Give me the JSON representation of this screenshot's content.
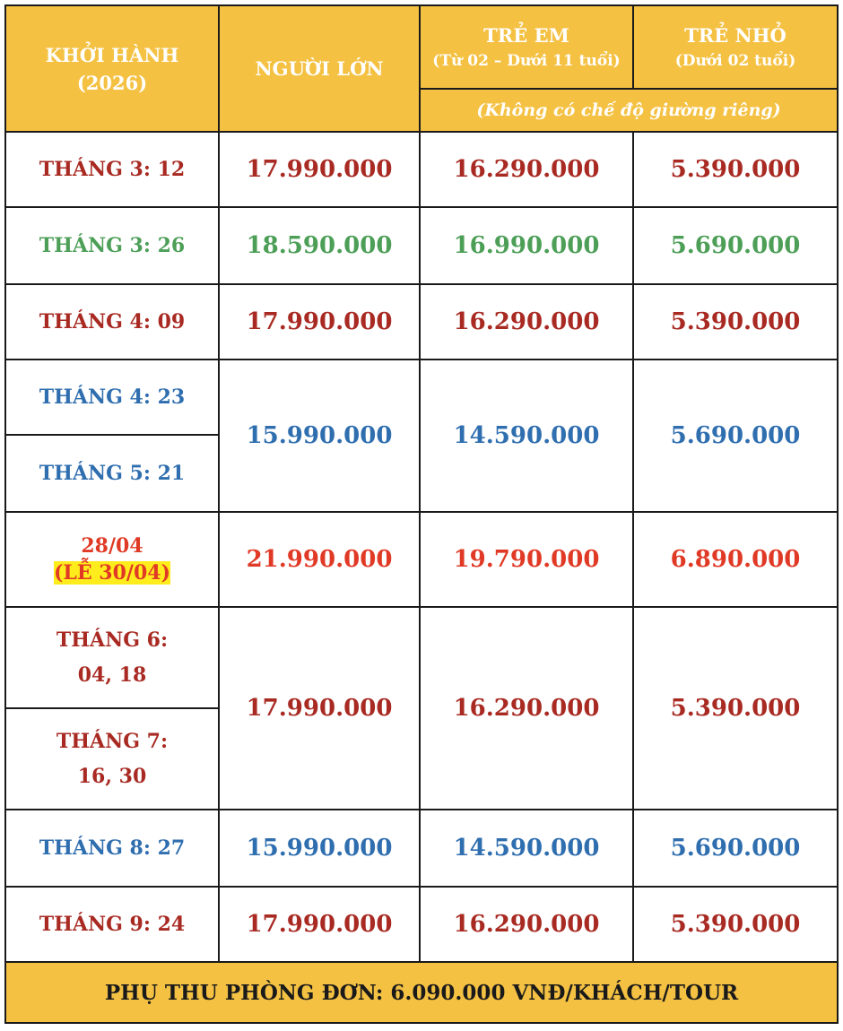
{
  "header": {
    "departure": [
      "KHỞI HÀNH",
      "(2026)"
    ],
    "adult": "NGƯỜI LỚN",
    "child_title": "TRẺ EM",
    "child_age": "(Từ 02 – Dưới 11 tuổi)",
    "infant_title": "TRẺ NHỎ",
    "infant_age": "(Dưới 02 tuổi)",
    "note": "(Không có chế độ giường riêng)"
  },
  "rows": [
    {
      "date": "THÁNG 3: 12",
      "adult": "17.990.000",
      "child": "16.290.000",
      "infant": "5.390.000"
    },
    {
      "date": "THÁNG 3: 26",
      "adult": "18.590.000",
      "child": "16.990.000",
      "infant": "5.690.000"
    },
    {
      "date": "THÁNG 4: 09",
      "adult": "17.990.000",
      "child": "16.290.000",
      "infant": "5.390.000"
    },
    {
      "date": "THÁNG 4: 23",
      "adult": "15.990.000",
      "child": "14.590.000",
      "infant": "5.690.000"
    },
    {
      "date": "THÁNG 5: 21"
    },
    {
      "date": "28/04",
      "date_note": "(LỄ 30/04)",
      "adult": "21.990.000",
      "child": "19.790.000",
      "infant": "6.890.000"
    },
    {
      "date": "THÁNG 6:",
      "date_line2": "04, 18",
      "adult": "17.990.000",
      "child": "16.290.000",
      "infant": "5.390.000"
    },
    {
      "date": "THÁNG 7:",
      "date_line2": "16, 30"
    },
    {
      "date": "THÁNG 8: 27",
      "adult": "15.990.000",
      "child": "14.590.000",
      "infant": "5.690.000"
    },
    {
      "date": "THÁNG 9: 24",
      "adult": "17.990.000",
      "child": "16.290.000",
      "infant": "5.390.000"
    }
  ],
  "footer": "PHỤ THU PHÒNG ĐƠN: 6.090.000 VNĐ/KHÁCH/TOUR",
  "colors": {
    "header_bg": "#f4c143",
    "red": "#a82a22",
    "green": "#4d9f58",
    "blue": "#2f6eaf",
    "holiday_red": "#e03a26",
    "highlight": "#ffec1c"
  }
}
